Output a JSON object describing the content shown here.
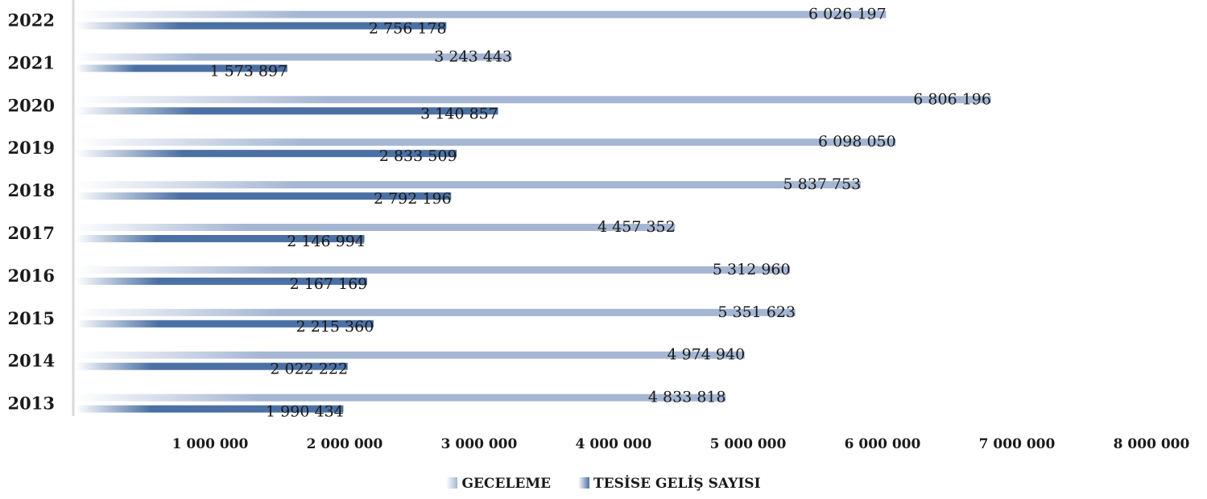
{
  "chart_data": {
    "type": "bar",
    "orientation": "horizontal",
    "categories": [
      "2022",
      "2021",
      "2020",
      "2019",
      "2018",
      "2017",
      "2016",
      "2015",
      "2014",
      "2013"
    ],
    "series": [
      {
        "name": "GECELEME",
        "color": "#a5b6d3",
        "values": [
          6026197,
          3243443,
          6806196,
          6098050,
          5837753,
          4457352,
          5312960,
          5351623,
          4974940,
          4833818
        ],
        "labels": [
          "6 026 197",
          "3 243 443",
          "6 806 196",
          "6 098 050",
          "5 837 753",
          "4 457 352",
          "5 312 960",
          "5 351 623",
          "4 974 940",
          "4 833 818"
        ]
      },
      {
        "name": "TESİSE GELİŞ SAYISI",
        "color": "#4b70a3",
        "values": [
          2756178,
          1573897,
          3140857,
          2833509,
          2792196,
          2146994,
          2167169,
          2215360,
          2022222,
          1990434
        ],
        "labels": [
          "2 756 178",
          "1 573 897",
          "3 140 857",
          "2 833 509",
          "2 792 196",
          "2 146 994",
          "2 167 169",
          "2 215 360",
          "2 022 222",
          "1 990 434"
        ]
      }
    ],
    "x_ticks": [
      1000000,
      2000000,
      3000000,
      4000000,
      5000000,
      6000000,
      7000000,
      8000000
    ],
    "x_tick_labels": [
      "1 000 000",
      "2 000 000",
      "3 000 000",
      "4 000 000",
      "5 000 000",
      "6 000 000",
      "7 000 000",
      "8 000 000"
    ],
    "xlim": [
      0,
      8000000
    ],
    "grid": false,
    "legend_position": "bottom"
  },
  "legend": {
    "items": [
      {
        "label": "GECELEME",
        "color": "#a5b6d3"
      },
      {
        "label": "TESİSE GELİŞ SAYISI",
        "color": "#4b70a3"
      }
    ]
  }
}
